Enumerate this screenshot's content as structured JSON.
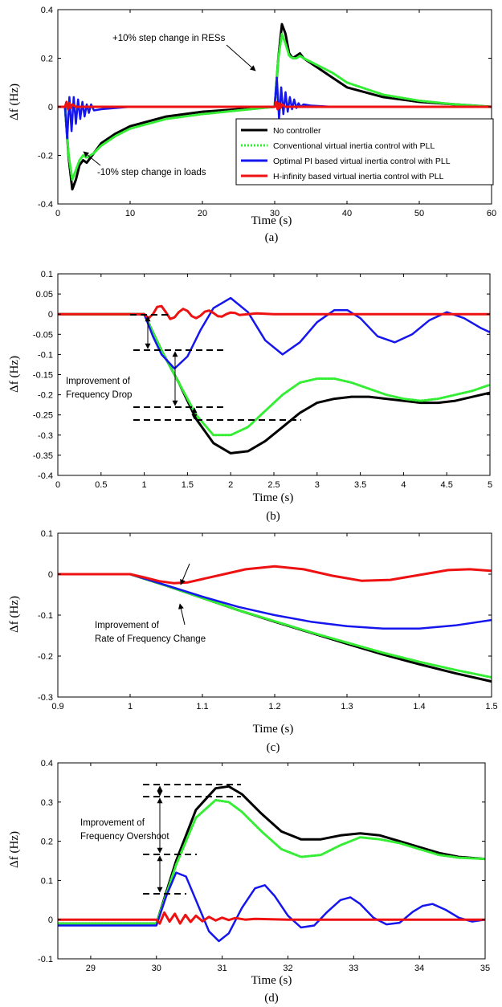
{
  "legend": [
    "No controller",
    "Conventional virtual inertia control with PLL",
    "Optimal PI based virtual inertia control with PLL",
    "H-infinity based virtual inertia control with PLL"
  ],
  "colors": {
    "no_controller": "#000000",
    "conventional": "#33ee33",
    "optimal_pi": "#1515ee",
    "h_infinity": "#ee1111"
  },
  "chart_data": [
    {
      "id": "a",
      "type": "line",
      "caption": "(a)",
      "xlabel": "Time (s)",
      "ylabel": "Δf (Hz)",
      "xlim": [
        0,
        60
      ],
      "ylim": [
        -0.4,
        0.4
      ],
      "xticks": [
        "0",
        "10",
        "20",
        "30",
        "40",
        "50",
        "60"
      ],
      "yticks": [
        "-0.4",
        "-0.2",
        "0",
        "0.2",
        "0.4"
      ],
      "legend_position": "bottom-right",
      "annotations": [
        "+10% step change in RESs",
        "-10% step change in loads"
      ],
      "series": [
        {
          "name": "No controller",
          "x": [
            0,
            1,
            1.5,
            2,
            2.5,
            3,
            3.5,
            4,
            5,
            6,
            8,
            10,
            15,
            20,
            25,
            30,
            30.5,
            31,
            31.5,
            32,
            32.5,
            33,
            33.5,
            34,
            36,
            38,
            40,
            45,
            50,
            55,
            60
          ],
          "y": [
            0,
            0,
            -0.21,
            -0.34,
            -0.3,
            -0.24,
            -0.22,
            -0.23,
            -0.19,
            -0.15,
            -0.11,
            -0.08,
            -0.04,
            -0.02,
            -0.01,
            0,
            0.2,
            0.34,
            0.3,
            0.22,
            0.2,
            0.21,
            0.22,
            0.2,
            0.16,
            0.12,
            0.08,
            0.04,
            0.02,
            0.01,
            0
          ]
        },
        {
          "name": "Conventional virtual inertia control with PLL",
          "x": [
            0,
            1,
            1.5,
            2,
            2.5,
            3,
            3.5,
            4,
            5,
            6,
            8,
            10,
            15,
            20,
            25,
            30,
            30.5,
            31,
            31.5,
            32,
            32.5,
            33,
            33.5,
            34,
            36,
            38,
            40,
            45,
            50,
            55,
            60
          ],
          "y": [
            0,
            0,
            -0.2,
            -0.3,
            -0.26,
            -0.22,
            -0.2,
            -0.21,
            -0.19,
            -0.16,
            -0.12,
            -0.09,
            -0.05,
            -0.03,
            -0.015,
            0,
            0.2,
            0.3,
            0.26,
            0.21,
            0.2,
            0.2,
            0.21,
            0.2,
            0.17,
            0.14,
            0.1,
            0.05,
            0.025,
            0.01,
            0
          ]
        },
        {
          "name": "Optimal PI based virtual inertia control with PLL",
          "x": [
            0,
            1,
            1.3,
            1.6,
            1.9,
            2.2,
            2.5,
            2.8,
            3.1,
            3.4,
            3.7,
            4.0,
            4.3,
            4.6,
            5,
            6,
            8,
            10,
            30,
            30.3,
            30.6,
            30.9,
            31.2,
            31.5,
            31.8,
            32.1,
            32.4,
            32.7,
            33.0,
            33.3,
            33.6,
            34,
            35,
            38,
            40,
            60
          ],
          "y": [
            0,
            0,
            -0.13,
            0.04,
            -0.1,
            0.04,
            -0.07,
            0.03,
            -0.05,
            0.02,
            -0.04,
            0.01,
            -0.025,
            0.01,
            -0.015,
            -0.01,
            -0.005,
            0,
            0,
            0.12,
            -0.05,
            0.08,
            -0.03,
            0.06,
            -0.02,
            0.04,
            -0.01,
            0.03,
            -0.005,
            0.015,
            0,
            0.01,
            0.005,
            0,
            0,
            0
          ]
        },
        {
          "name": "H-infinity based virtual inertia control with PLL",
          "x": [
            0,
            1,
            1.2,
            1.4,
            1.6,
            1.8,
            2.0,
            2.5,
            3,
            5,
            30,
            30.2,
            30.4,
            30.6,
            30.8,
            31,
            31.5,
            32,
            35,
            60
          ],
          "y": [
            0,
            0,
            0.02,
            -0.01,
            0.015,
            -0.005,
            0.01,
            0,
            0,
            0,
            0,
            0.02,
            -0.01,
            0.015,
            -0.005,
            0.01,
            0,
            0,
            0,
            0
          ]
        }
      ]
    },
    {
      "id": "b",
      "type": "line",
      "caption": "(b)",
      "xlabel": "Time (s)",
      "ylabel": "Δf (Hz)",
      "xlim": [
        0,
        5
      ],
      "ylim": [
        -0.4,
        0.1
      ],
      "xticks": [
        "0",
        "0.5",
        "1",
        "1.5",
        "2",
        "2.5",
        "3",
        "3.5",
        "4",
        "4.5",
        "5"
      ],
      "yticks": [
        "-0.4",
        "-0.35",
        "-0.3",
        "-0.25",
        "-0.2",
        "-0.15",
        "-0.1",
        "-0.05",
        "0",
        "0.05",
        "0.1"
      ],
      "annotations": [
        "Improvement of Frequency Drop"
      ],
      "series": [
        {
          "name": "No controller",
          "x": [
            0,
            1,
            1.2,
            1.4,
            1.6,
            1.8,
            2.0,
            2.2,
            2.4,
            2.6,
            2.8,
            3.0,
            3.2,
            3.4,
            3.6,
            3.8,
            4.0,
            4.2,
            4.4,
            4.6,
            4.8,
            5.0
          ],
          "y": [
            0,
            0,
            -0.09,
            -0.17,
            -0.26,
            -0.32,
            -0.345,
            -0.34,
            -0.315,
            -0.28,
            -0.245,
            -0.22,
            -0.21,
            -0.205,
            -0.205,
            -0.21,
            -0.215,
            -0.22,
            -0.22,
            -0.215,
            -0.205,
            -0.195
          ]
        },
        {
          "name": "Conventional virtual inertia control with PLL",
          "x": [
            0,
            1,
            1.2,
            1.4,
            1.6,
            1.8,
            2.0,
            2.2,
            2.4,
            2.6,
            2.8,
            3.0,
            3.2,
            3.4,
            3.6,
            3.8,
            4.0,
            4.2,
            4.4,
            4.6,
            4.8,
            5.0
          ],
          "y": [
            0,
            0,
            -0.09,
            -0.17,
            -0.25,
            -0.3,
            -0.3,
            -0.28,
            -0.24,
            -0.2,
            -0.17,
            -0.16,
            -0.16,
            -0.17,
            -0.185,
            -0.2,
            -0.21,
            -0.215,
            -0.21,
            -0.2,
            -0.19,
            -0.175
          ]
        },
        {
          "name": "Optimal PI based virtual inertia control with PLL",
          "x": [
            0,
            1,
            1.1,
            1.2,
            1.35,
            1.5,
            1.65,
            1.8,
            2.0,
            2.2,
            2.4,
            2.6,
            2.8,
            3.0,
            3.2,
            3.35,
            3.5,
            3.7,
            3.9,
            4.1,
            4.3,
            4.5,
            4.7,
            4.9,
            5.0
          ],
          "y": [
            0,
            0,
            -0.055,
            -0.1,
            -0.135,
            -0.105,
            -0.04,
            0.015,
            0.04,
            0.005,
            -0.065,
            -0.1,
            -0.07,
            -0.02,
            0.01,
            0.01,
            -0.01,
            -0.055,
            -0.07,
            -0.05,
            -0.015,
            0.005,
            -0.01,
            -0.035,
            -0.045
          ]
        },
        {
          "name": "H-infinity based virtual inertia control with PLL",
          "x": [
            0,
            1,
            1.05,
            1.1,
            1.15,
            1.2,
            1.25,
            1.3,
            1.35,
            1.4,
            1.45,
            1.5,
            1.55,
            1.6,
            1.65,
            1.7,
            1.75,
            1.8,
            1.85,
            1.9,
            1.95,
            2.0,
            2.05,
            2.1,
            2.2,
            2.3,
            2.5,
            3.0,
            4.0,
            5.0
          ],
          "y": [
            0,
            0,
            -0.01,
            0,
            0.018,
            0.02,
            0.005,
            -0.012,
            -0.008,
            0.005,
            0.013,
            0.008,
            -0.005,
            -0.01,
            -0.004,
            0.006,
            0.009,
            0.003,
            -0.005,
            -0.006,
            0,
            0.004,
            0.003,
            -0.002,
            0,
            0.002,
            0,
            0,
            0,
            0
          ]
        }
      ]
    },
    {
      "id": "c",
      "type": "line",
      "caption": "(c)",
      "xlabel": "Time (s)",
      "ylabel": "Δf (Hz)",
      "xlim": [
        0.9,
        1.5
      ],
      "ylim": [
        -0.3,
        0.1
      ],
      "xticks": [
        "0.9",
        "1",
        "1.1",
        "1.2",
        "1.3",
        "1.4",
        "1.5"
      ],
      "yticks": [
        "-0.3",
        "-0.2",
        "-0.1",
        "0",
        "0.1"
      ],
      "annotations": [
        "Improvement of Rate of Frequency Change"
      ],
      "series": [
        {
          "name": "No controller",
          "x": [
            0.9,
            1.0,
            1.05,
            1.1,
            1.15,
            1.2,
            1.25,
            1.3,
            1.35,
            1.4,
            1.45,
            1.5
          ],
          "y": [
            0,
            0,
            -0.028,
            -0.058,
            -0.088,
            -0.116,
            -0.143,
            -0.17,
            -0.196,
            -0.22,
            -0.242,
            -0.262
          ]
        },
        {
          "name": "Conventional virtual inertia control with PLL",
          "x": [
            0.9,
            1.0,
            1.05,
            1.1,
            1.15,
            1.2,
            1.25,
            1.3,
            1.35,
            1.4,
            1.45,
            1.5
          ],
          "y": [
            0,
            0,
            -0.028,
            -0.058,
            -0.088,
            -0.115,
            -0.142,
            -0.167,
            -0.192,
            -0.214,
            -0.234,
            -0.252
          ]
        },
        {
          "name": "Optimal PI based virtual inertia control with PLL",
          "x": [
            0.9,
            1.0,
            1.05,
            1.1,
            1.15,
            1.2,
            1.25,
            1.3,
            1.35,
            1.4,
            1.45,
            1.5
          ],
          "y": [
            0,
            0,
            -0.027,
            -0.055,
            -0.08,
            -0.1,
            -0.116,
            -0.127,
            -0.133,
            -0.133,
            -0.125,
            -0.112
          ]
        },
        {
          "name": "H-infinity based virtual inertia control with PLL",
          "x": [
            0.9,
            1.0,
            1.02,
            1.04,
            1.06,
            1.08,
            1.1,
            1.13,
            1.16,
            1.2,
            1.24,
            1.28,
            1.32,
            1.36,
            1.4,
            1.44,
            1.47,
            1.5
          ],
          "y": [
            0,
            0,
            -0.008,
            -0.017,
            -0.022,
            -0.02,
            -0.012,
            0,
            0.012,
            0.019,
            0.012,
            -0.004,
            -0.016,
            -0.014,
            -0.002,
            0.01,
            0.012,
            0.008
          ]
        }
      ]
    },
    {
      "id": "d",
      "type": "line",
      "caption": "(d)",
      "xlabel": "Time (s)",
      "ylabel": "Δf (Hz)",
      "xlim": [
        28.5,
        35
      ],
      "ylim": [
        -0.1,
        0.4
      ],
      "xticks": [
        "29",
        "30",
        "31",
        "32",
        "33",
        "34",
        "35"
      ],
      "yticks": [
        "-0.1",
        "0",
        "0.1",
        "0.2",
        "0.3",
        "0.4"
      ],
      "annotations": [
        "Improvement of Frequency Overshoot"
      ],
      "series": [
        {
          "name": "No controller",
          "x": [
            28.5,
            30,
            30.3,
            30.6,
            30.9,
            31.1,
            31.3,
            31.6,
            31.9,
            32.2,
            32.5,
            32.8,
            33.1,
            33.4,
            33.7,
            34.0,
            34.3,
            34.6,
            35.0
          ],
          "y": [
            -0.01,
            -0.01,
            0.15,
            0.28,
            0.335,
            0.34,
            0.32,
            0.27,
            0.225,
            0.205,
            0.205,
            0.215,
            0.22,
            0.215,
            0.2,
            0.185,
            0.17,
            0.16,
            0.155
          ]
        },
        {
          "name": "Conventional virtual inertia control with PLL",
          "x": [
            28.5,
            30,
            30.3,
            30.6,
            30.9,
            31.1,
            31.3,
            31.6,
            31.9,
            32.2,
            32.5,
            32.8,
            33.1,
            33.4,
            33.7,
            34.0,
            34.3,
            34.6,
            35.0
          ],
          "y": [
            -0.01,
            -0.01,
            0.14,
            0.26,
            0.305,
            0.3,
            0.275,
            0.225,
            0.18,
            0.16,
            0.165,
            0.19,
            0.21,
            0.205,
            0.195,
            0.18,
            0.165,
            0.158,
            0.155
          ]
        },
        {
          "name": "Optimal PI based virtual inertia control with PLL",
          "x": [
            28.5,
            30,
            30.15,
            30.3,
            30.45,
            30.6,
            30.8,
            30.95,
            31.1,
            31.3,
            31.5,
            31.65,
            31.8,
            32.0,
            32.2,
            32.4,
            32.6,
            32.8,
            32.95,
            33.1,
            33.3,
            33.5,
            33.7,
            33.9,
            34.05,
            34.2,
            34.4,
            34.6,
            34.8,
            35.0
          ],
          "y": [
            -0.015,
            -0.015,
            0.06,
            0.12,
            0.11,
            0.05,
            -0.03,
            -0.055,
            -0.035,
            0.03,
            0.08,
            0.088,
            0.06,
            0.01,
            -0.02,
            -0.015,
            0.02,
            0.05,
            0.057,
            0.04,
            0.005,
            -0.012,
            -0.008,
            0.02,
            0.035,
            0.04,
            0.025,
            0.005,
            -0.005,
            0
          ]
        },
        {
          "name": "H-infinity based virtual inertia control with PLL",
          "x": [
            28.5,
            30,
            30.05,
            30.12,
            30.2,
            30.28,
            30.36,
            30.44,
            30.52,
            30.6,
            30.7,
            30.8,
            30.9,
            31.0,
            31.1,
            31.2,
            31.35,
            31.5,
            32.0,
            33.0,
            35.0
          ],
          "y": [
            0,
            0,
            -0.01,
            0.018,
            -0.005,
            0.015,
            -0.01,
            0.012,
            -0.006,
            0.01,
            -0.004,
            0.007,
            -0.002,
            0.005,
            -0.001,
            0.004,
            0,
            0.002,
            0,
            0,
            0
          ]
        }
      ]
    }
  ]
}
